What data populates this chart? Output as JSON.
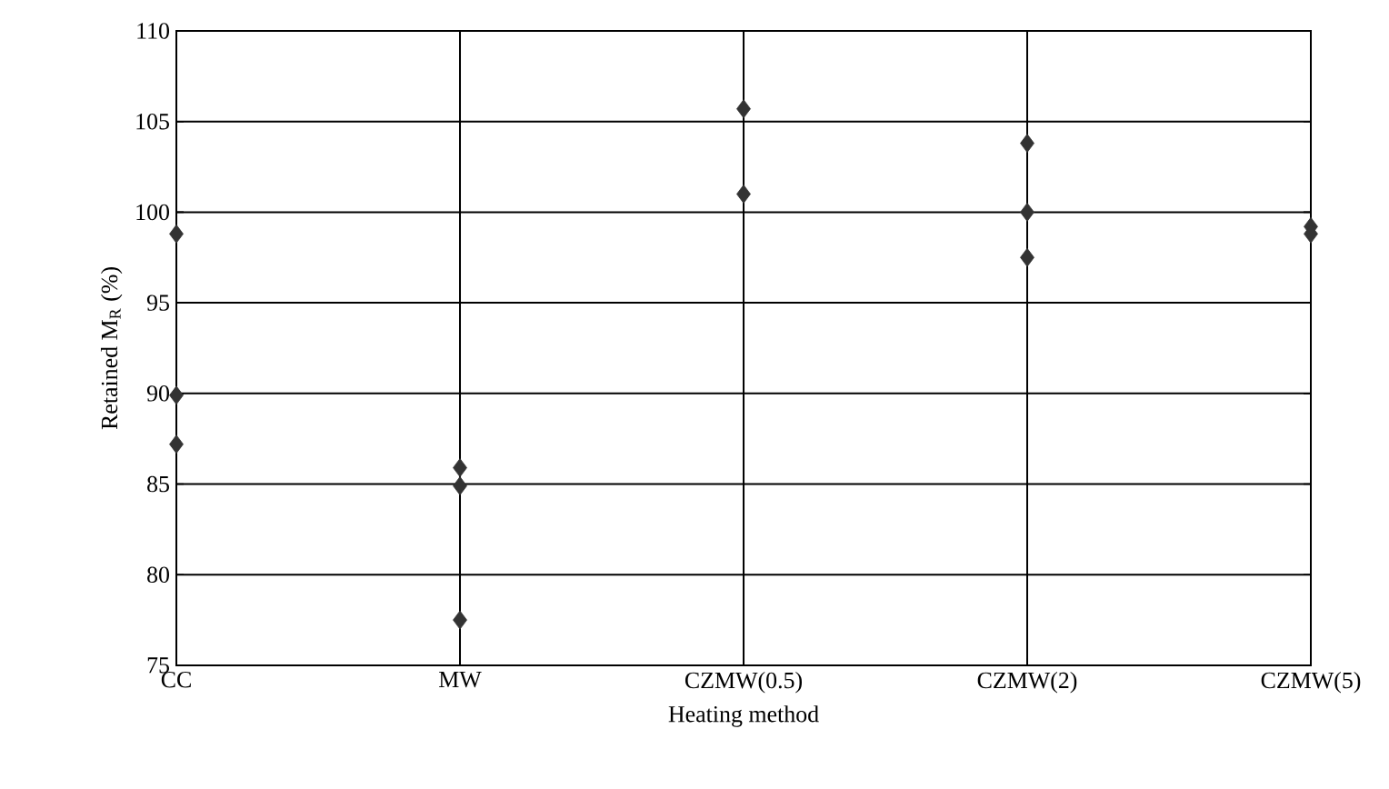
{
  "chart_data": {
    "type": "scatter",
    "xlabel": "Heating method",
    "ylabel": "Retained M$_{R}$ (%)",
    "categories": [
      "CC",
      "MW",
      "CZMW(0.5)",
      "CZMW(2)",
      "CZMW(5)"
    ],
    "series": [
      {
        "color": "#333333",
        "values": [
          98.8,
          85.9,
          105.7,
          103.8,
          99.2
        ]
      },
      {
        "color": "#333333",
        "values": [
          89.9,
          84.9,
          101.0,
          100.0,
          98.8
        ]
      },
      {
        "color": "#333333",
        "values": [
          87.2,
          77.5,
          null,
          97.5,
          null
        ]
      }
    ],
    "ylim": [
      75,
      110
    ],
    "yticks": [
      75,
      80,
      85,
      90,
      95,
      100,
      105,
      110
    ],
    "grid": true,
    "marker": "diamond"
  }
}
